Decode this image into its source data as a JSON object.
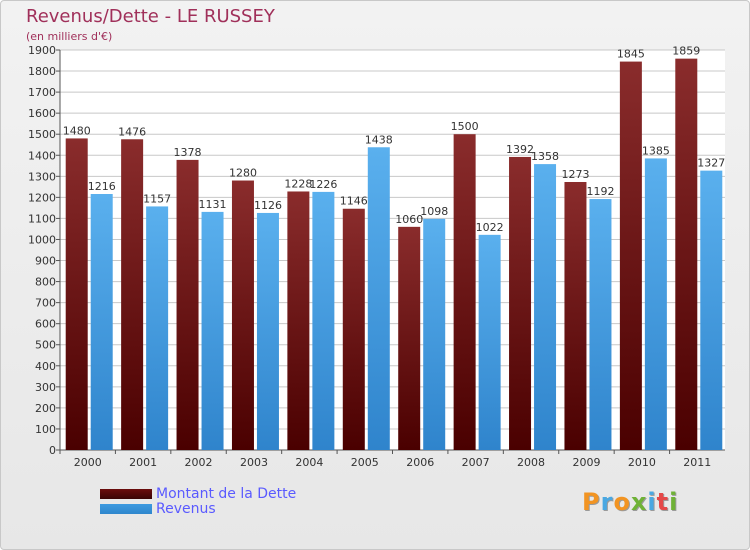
{
  "header": {
    "title": "Revenus/Dette - LE RUSSEY",
    "subtitle": "(en milliers d'€)"
  },
  "legend": [
    {
      "name": "Montant de la Dette",
      "color": "#6b0d0d"
    },
    {
      "name": "Revenus",
      "color": "#3d9ae0"
    }
  ],
  "logo": {
    "letters": [
      {
        "char": "P",
        "color": "#f29422"
      },
      {
        "char": "r",
        "color": "#4aa8e2"
      },
      {
        "char": "o",
        "color": "#f29422"
      },
      {
        "char": "x",
        "color": "#6fb236"
      },
      {
        "char": "i",
        "color": "#4aa8e2"
      },
      {
        "char": "t",
        "color": "#e54848"
      },
      {
        "char": "i",
        "color": "#6fb236"
      }
    ]
  },
  "chart_data": {
    "type": "bar",
    "title": "Revenus/Dette - LE RUSSEY",
    "ylabel": "(en milliers d'€)",
    "xlabel": "",
    "categories": [
      "2000",
      "2001",
      "2002",
      "2003",
      "2004",
      "2005",
      "2006",
      "2007",
      "2008",
      "2009",
      "2010",
      "2011"
    ],
    "series": [
      {
        "name": "Montant de la Dette",
        "color": "#7a1a1a",
        "values": [
          1480,
          1476,
          1378,
          1280,
          1228,
          1146,
          1060,
          1500,
          1392,
          1273,
          1845,
          1859
        ]
      },
      {
        "name": "Revenus",
        "color": "#4aa3e6",
        "values": [
          1216,
          1157,
          1131,
          1126,
          1226,
          1438,
          1098,
          1022,
          1358,
          1192,
          1385,
          1327
        ]
      }
    ],
    "ylim": [
      0,
      1900
    ],
    "yticks": [
      0,
      100,
      200,
      300,
      400,
      500,
      600,
      700,
      800,
      900,
      1000,
      1100,
      1200,
      1300,
      1400,
      1500,
      1600,
      1700,
      1800,
      1900
    ],
    "grid": true,
    "legend_position": "bottom-left"
  }
}
